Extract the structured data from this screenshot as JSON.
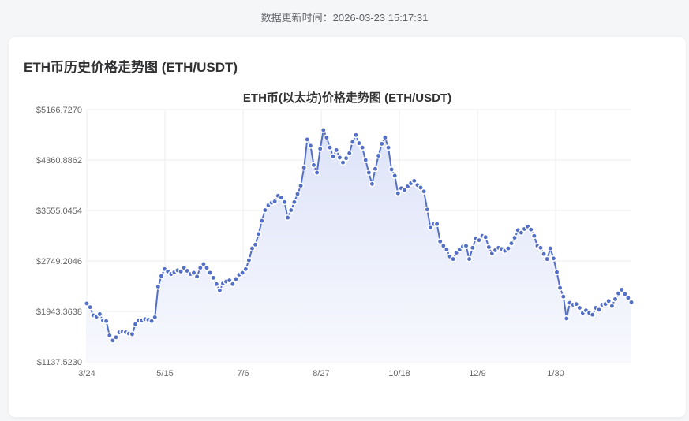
{
  "header": {
    "update_label": "数据更新时间：2026-03-23 15:17:31"
  },
  "card": {
    "title": "ETH币历史价格走势图 (ETH/USDT)"
  },
  "colors": {
    "line": "#5470c6",
    "area_top": "#dde3f8",
    "area_bottom": "#f8f9fe",
    "grid": "#eeeeee",
    "axis_text": "#666666",
    "title_text": "#333333"
  },
  "chart_data": {
    "type": "line",
    "title": "ETH币(以太坊)价格走势图 (ETH/USDT)",
    "xlabel": "",
    "ylabel": "",
    "ylim": [
      1137.523,
      5166.727
    ],
    "y_ticks": [
      "$5166.7270",
      "$4360.8862",
      "$3555.0454",
      "$2749.2046",
      "$1943.3638",
      "$1137.5230"
    ],
    "y_tick_values": [
      5166.727,
      4360.8862,
      3555.0454,
      2749.2046,
      1943.3638,
      1137.523
    ],
    "x_ticks": [
      "3/24",
      "5/15",
      "7/6",
      "8/27",
      "10/18",
      "12/9",
      "1/30"
    ],
    "grid": true,
    "legend": null,
    "area_fill": true,
    "markers": true,
    "series": [
      {
        "name": "ETH/USDT",
        "x_start": "3/24",
        "step_days": 3,
        "values": [
          2070,
          2010,
          1880,
          1860,
          1900,
          1800,
          1790,
          1560,
          1480,
          1530,
          1610,
          1620,
          1610,
          1590,
          1580,
          1740,
          1800,
          1800,
          1820,
          1810,
          1790,
          1850,
          2340,
          2510,
          2620,
          2580,
          2540,
          2570,
          2600,
          2580,
          2640,
          2590,
          2540,
          2560,
          2500,
          2640,
          2700,
          2640,
          2560,
          2480,
          2380,
          2280,
          2390,
          2420,
          2440,
          2380,
          2460,
          2530,
          2560,
          2620,
          2760,
          2950,
          3010,
          3180,
          3390,
          3560,
          3640,
          3680,
          3700,
          3790,
          3760,
          3690,
          3440,
          3560,
          3690,
          3820,
          3950,
          4240,
          4690,
          4590,
          4280,
          4160,
          4540,
          4840,
          4720,
          4560,
          4420,
          4520,
          4400,
          4320,
          4390,
          4470,
          4650,
          4760,
          4630,
          4560,
          4360,
          4160,
          3980,
          4220,
          4430,
          4620,
          4720,
          4560,
          4210,
          4110,
          3830,
          3910,
          3880,
          3940,
          3990,
          4030,
          3960,
          3920,
          3860,
          3570,
          3280,
          3340,
          3340,
          3060,
          2990,
          2930,
          2820,
          2780,
          2880,
          2930,
          2980,
          2990,
          2780,
          2960,
          3110,
          3080,
          3150,
          3130,
          2970,
          2870,
          2920,
          2960,
          2940,
          2910,
          2950,
          3030,
          3120,
          3240,
          3200,
          3260,
          3300,
          3250,
          3150,
          2990,
          2960,
          2860,
          2780,
          2950,
          2790,
          2570,
          2320,
          2180,
          1830,
          2080,
          2050,
          2060,
          2000,
          1920,
          1960,
          1920,
          1890,
          2000,
          1970,
          2050,
          2060,
          2110,
          2030,
          2140,
          2230,
          2290,
          2220,
          2160,
          2090
        ]
      }
    ]
  }
}
